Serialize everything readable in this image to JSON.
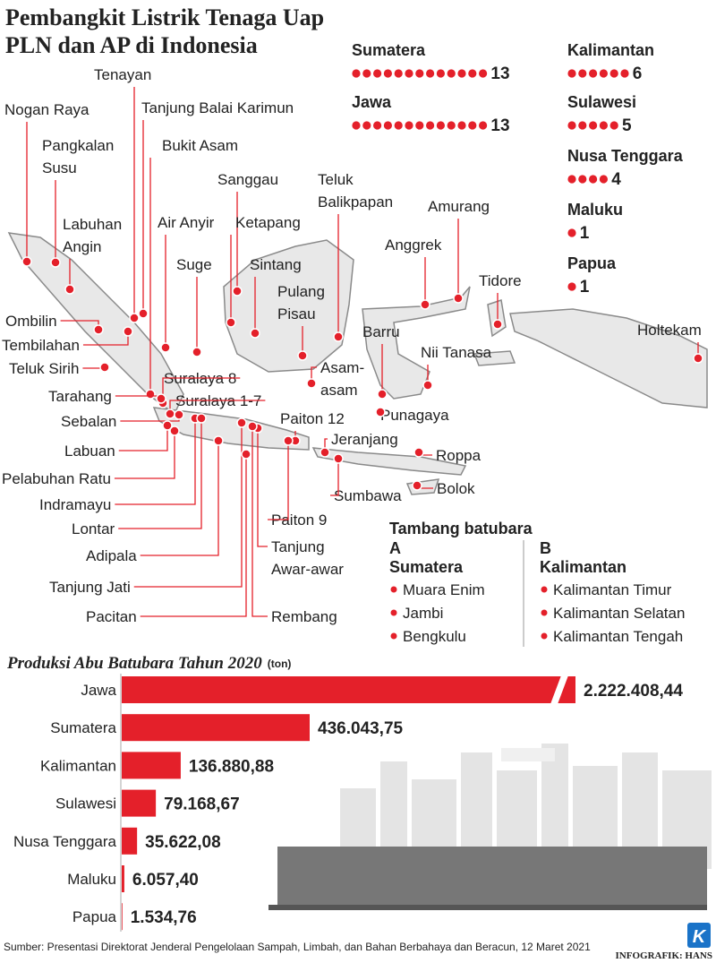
{
  "title": [
    "Pembangkit Listrik Tenaga Uap",
    "PLN dan AP di Indonesia"
  ],
  "plant_counts": [
    {
      "region": "Sumatera",
      "count": 13
    },
    {
      "region": "Jawa",
      "count": 13
    },
    {
      "region": "Kalimantan",
      "count": 6
    },
    {
      "region": "Sulawesi",
      "count": 5
    },
    {
      "region": "Nusa Tenggara",
      "count": 4
    },
    {
      "region": "Maluku",
      "count": 1
    },
    {
      "region": "Papua",
      "count": 1
    }
  ],
  "plants": [
    [
      "Nogan Raya"
    ],
    [
      "Tenayan"
    ],
    [
      "Tanjung Balai Karimun"
    ],
    [
      "Pangkalan",
      "Susu"
    ],
    [
      "Bukit Asam"
    ],
    [
      "Labuhan",
      "Angin"
    ],
    [
      "Sanggau"
    ],
    [
      "Teluk",
      "Balikpapan"
    ],
    [
      "Amurang"
    ],
    [
      "Air Anyir"
    ],
    [
      "Ketapang"
    ],
    [
      "Anggrek"
    ],
    [
      "Suge"
    ],
    [
      "Sintang"
    ],
    [
      "Tidore"
    ],
    [
      "Pulang",
      "Pisau"
    ],
    [
      "Ombilin"
    ],
    [
      "Tembilahan"
    ],
    [
      "Barru"
    ],
    [
      "Holtekam"
    ],
    [
      "Teluk Sirih"
    ],
    [
      "Nii Tanasa"
    ],
    [
      "Asam-",
      "asam"
    ],
    [
      "Suralaya 8"
    ],
    [
      "Tarahang"
    ],
    [
      "Suralaya 1-7"
    ],
    [
      "Punagaya"
    ],
    [
      "Sebalan"
    ],
    [
      "Paiton 12"
    ],
    [
      "Labuan"
    ],
    [
      "Jeranjang"
    ],
    [
      "Roppa"
    ],
    [
      "Pelabuhan Ratu"
    ],
    [
      "Sumbawa"
    ],
    [
      "Bolok"
    ],
    [
      "Indramayu"
    ],
    [
      "Paiton 9"
    ],
    [
      "Lontar"
    ],
    [
      "Tanjung",
      "Awar-awar"
    ],
    [
      "Adipala"
    ],
    [
      "Tanjung Jati"
    ],
    [
      "Pacitan"
    ],
    [
      "Rembang"
    ]
  ],
  "mining": {
    "title": "Tambang batubara",
    "groups": [
      {
        "letter": "A",
        "region": "Sumatera",
        "sites": [
          "Muara Enim",
          "Jambi",
          "Bengkulu"
        ]
      },
      {
        "letter": "B",
        "region": "Kalimantan",
        "sites": [
          "Kalimantan Timur",
          "Kalimantan Selatan",
          "Kalimantan Tengah"
        ]
      }
    ]
  },
  "chart_data": {
    "type": "bar",
    "title": "Produksi Abu Batubara Tahun 2020",
    "unit": "(ton)",
    "categories": [
      "Jawa",
      "Sumatera",
      "Kalimantan",
      "Sulawesi",
      "Nusa Tenggara",
      "Maluku",
      "Papua"
    ],
    "values": [
      2222408.44,
      436043.75,
      136880.88,
      79168.67,
      35622.08,
      6057.4,
      1534.76
    ],
    "value_labels": [
      "2.222.408,44",
      "436.043,75",
      "136.880,88",
      "79.168,67",
      "35.622,08",
      "6.057,40",
      "1.534,76"
    ],
    "color": "#e4202a"
  },
  "source": "Sumber: Presentasi Direktorat Jenderal Pengelolaan Sampah, Limbah, dan Bahan Berbahaya dan Beracun, 12 Maret 2021",
  "credit": "INFOGRAFIK: HANS",
  "logo": "K"
}
